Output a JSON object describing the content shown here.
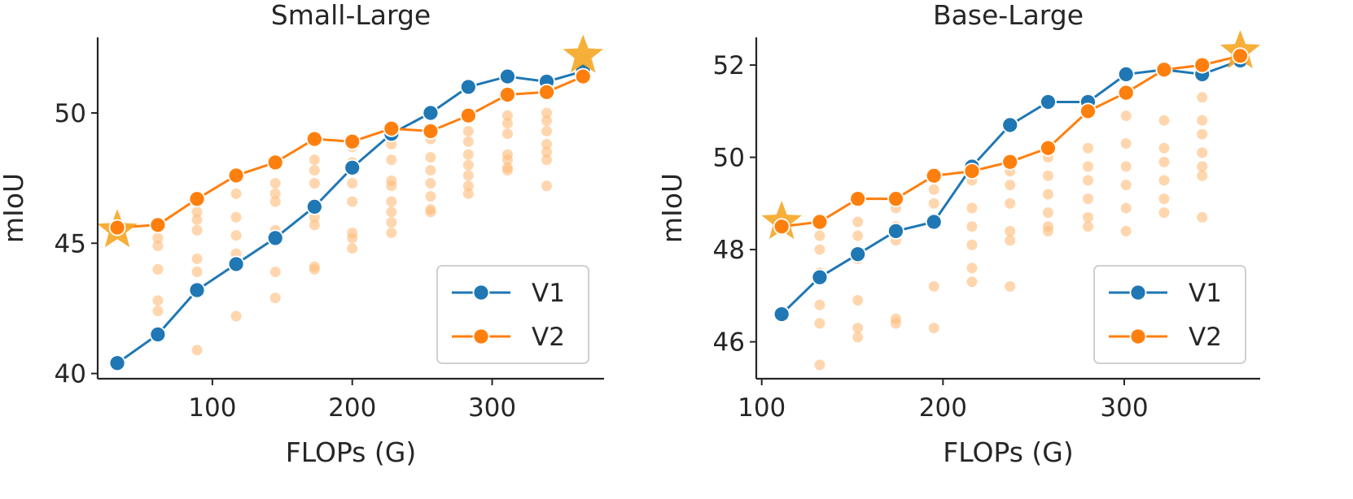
{
  "chart_data": [
    {
      "type": "line",
      "title": "Small-Large",
      "xlabel": "FLOPs (G)",
      "ylabel": "mIoU",
      "xlim": [
        18,
        380
      ],
      "ylim": [
        39.8,
        52.9
      ],
      "xticks": [
        100,
        200,
        300
      ],
      "yticks": [
        40,
        45,
        50
      ],
      "grid": false,
      "legend": "lower-right",
      "series": [
        {
          "name": "V1",
          "color": "#1f77b4",
          "x": [
            32,
            61,
            89,
            117,
            145,
            173,
            200,
            228,
            256,
            283,
            311,
            339,
            365
          ],
          "y": [
            40.4,
            41.5,
            43.2,
            44.2,
            45.2,
            46.4,
            47.9,
            49.2,
            50.0,
            51.0,
            51.4,
            51.2,
            51.6
          ]
        },
        {
          "name": "V2",
          "color": "#ff7f0e",
          "x": [
            32,
            61,
            89,
            117,
            145,
            173,
            200,
            228,
            256,
            283,
            311,
            339,
            365
          ],
          "y": [
            45.6,
            45.7,
            46.7,
            47.6,
            48.1,
            49.0,
            48.9,
            49.4,
            49.3,
            49.9,
            50.7,
            50.8,
            51.4
          ]
        }
      ],
      "scatter_points": {
        "color": "#ffbb78",
        "points": [
          [
            61,
            45.2
          ],
          [
            61,
            44.9
          ],
          [
            61,
            44.0
          ],
          [
            61,
            42.8
          ],
          [
            61,
            42.4
          ],
          [
            89,
            46.2
          ],
          [
            89,
            45.9
          ],
          [
            89,
            45.5
          ],
          [
            89,
            44.4
          ],
          [
            89,
            43.9
          ],
          [
            89,
            40.9
          ],
          [
            117,
            46.9
          ],
          [
            117,
            46.0
          ],
          [
            117,
            45.3
          ],
          [
            117,
            44.6
          ],
          [
            117,
            44.1
          ],
          [
            117,
            42.2
          ],
          [
            145,
            47.3
          ],
          [
            145,
            46.9
          ],
          [
            145,
            46.6
          ],
          [
            145,
            45.5
          ],
          [
            145,
            43.9
          ],
          [
            145,
            42.9
          ],
          [
            173,
            48.2
          ],
          [
            173,
            47.8
          ],
          [
            173,
            47.3
          ],
          [
            173,
            46.0
          ],
          [
            173,
            45.7
          ],
          [
            173,
            44.1
          ],
          [
            173,
            44.0
          ],
          [
            200,
            48.7
          ],
          [
            200,
            48.1
          ],
          [
            200,
            47.3
          ],
          [
            200,
            46.6
          ],
          [
            200,
            45.4
          ],
          [
            200,
            45.2
          ],
          [
            200,
            44.8
          ],
          [
            228,
            48.8
          ],
          [
            228,
            48.2
          ],
          [
            228,
            47.4
          ],
          [
            228,
            47.2
          ],
          [
            228,
            46.6
          ],
          [
            228,
            46.2
          ],
          [
            228,
            45.8
          ],
          [
            228,
            45.4
          ],
          [
            256,
            49.0
          ],
          [
            256,
            48.3
          ],
          [
            256,
            47.8
          ],
          [
            256,
            47.3
          ],
          [
            256,
            46.8
          ],
          [
            256,
            46.3
          ],
          [
            256,
            46.2
          ],
          [
            283,
            49.3
          ],
          [
            283,
            48.9
          ],
          [
            283,
            48.4
          ],
          [
            283,
            48.0
          ],
          [
            283,
            47.6
          ],
          [
            283,
            47.2
          ],
          [
            283,
            46.9
          ],
          [
            311,
            49.9
          ],
          [
            311,
            49.6
          ],
          [
            311,
            49.2
          ],
          [
            311,
            48.4
          ],
          [
            311,
            48.2
          ],
          [
            311,
            47.9
          ],
          [
            311,
            47.8
          ],
          [
            339,
            50.0
          ],
          [
            339,
            49.7
          ],
          [
            339,
            49.3
          ],
          [
            339,
            48.8
          ],
          [
            339,
            48.5
          ],
          [
            339,
            48.2
          ],
          [
            339,
            47.2
          ]
        ]
      },
      "star_points": [
        {
          "x": 32,
          "y": 45.5
        },
        {
          "x": 365,
          "y": 52.2
        }
      ]
    },
    {
      "type": "line",
      "title": "Base-Large",
      "xlabel": "FLOPs (G)",
      "ylabel": "mIoU",
      "xlim": [
        97,
        375
      ],
      "ylim": [
        45.2,
        52.6
      ],
      "xticks": [
        100,
        200,
        300
      ],
      "yticks": [
        46,
        48,
        50,
        52
      ],
      "grid": false,
      "legend": "lower-right",
      "series": [
        {
          "name": "V1",
          "color": "#1f77b4",
          "x": [
            111,
            132,
            153,
            174,
            195,
            216,
            237,
            258,
            280,
            301,
            322,
            343,
            364
          ],
          "y": [
            46.6,
            47.4,
            47.9,
            48.4,
            48.6,
            49.8,
            50.7,
            51.2,
            51.2,
            51.8,
            51.9,
            51.8,
            52.1
          ]
        },
        {
          "name": "V2",
          "color": "#ff7f0e",
          "x": [
            111,
            132,
            153,
            174,
            195,
            216,
            237,
            258,
            280,
            301,
            322,
            343,
            364
          ],
          "y": [
            48.5,
            48.6,
            49.1,
            49.1,
            49.6,
            49.7,
            49.9,
            50.2,
            51.0,
            51.4,
            51.9,
            52.0,
            52.2
          ]
        }
      ],
      "scatter_points": {
        "color": "#ffbb78",
        "points": [
          [
            132,
            48.3
          ],
          [
            132,
            48.0
          ],
          [
            132,
            47.5
          ],
          [
            132,
            46.8
          ],
          [
            132,
            46.4
          ],
          [
            132,
            45.5
          ],
          [
            153,
            48.6
          ],
          [
            153,
            48.3
          ],
          [
            153,
            47.8
          ],
          [
            153,
            46.9
          ],
          [
            153,
            46.3
          ],
          [
            153,
            46.1
          ],
          [
            174,
            48.9
          ],
          [
            174,
            48.5
          ],
          [
            174,
            48.2
          ],
          [
            174,
            46.5
          ],
          [
            174,
            46.4
          ],
          [
            195,
            49.3
          ],
          [
            195,
            49.0
          ],
          [
            195,
            48.6
          ],
          [
            195,
            47.2
          ],
          [
            195,
            46.3
          ],
          [
            216,
            49.5
          ],
          [
            216,
            48.9
          ],
          [
            216,
            48.5
          ],
          [
            216,
            48.1
          ],
          [
            216,
            47.6
          ],
          [
            216,
            47.3
          ],
          [
            237,
            49.7
          ],
          [
            237,
            49.4
          ],
          [
            237,
            49.0
          ],
          [
            237,
            48.4
          ],
          [
            237,
            48.2
          ],
          [
            237,
            47.2
          ],
          [
            258,
            50.0
          ],
          [
            258,
            49.6
          ],
          [
            258,
            49.2
          ],
          [
            258,
            48.8
          ],
          [
            258,
            48.5
          ],
          [
            258,
            48.4
          ],
          [
            280,
            50.2
          ],
          [
            280,
            49.8
          ],
          [
            280,
            49.5
          ],
          [
            280,
            49.1
          ],
          [
            280,
            48.7
          ],
          [
            280,
            48.5
          ],
          [
            301,
            50.9
          ],
          [
            301,
            50.3
          ],
          [
            301,
            49.8
          ],
          [
            301,
            49.4
          ],
          [
            301,
            48.9
          ],
          [
            301,
            48.4
          ],
          [
            322,
            50.8
          ],
          [
            322,
            50.2
          ],
          [
            322,
            49.9
          ],
          [
            322,
            49.5
          ],
          [
            322,
            49.1
          ],
          [
            322,
            48.8
          ],
          [
            343,
            51.3
          ],
          [
            343,
            50.8
          ],
          [
            343,
            50.5
          ],
          [
            343,
            50.1
          ],
          [
            343,
            49.8
          ],
          [
            343,
            49.6
          ],
          [
            343,
            48.7
          ]
        ]
      },
      "star_points": [
        {
          "x": 111,
          "y": 48.6
        },
        {
          "x": 364,
          "y": 52.3
        }
      ]
    }
  ]
}
